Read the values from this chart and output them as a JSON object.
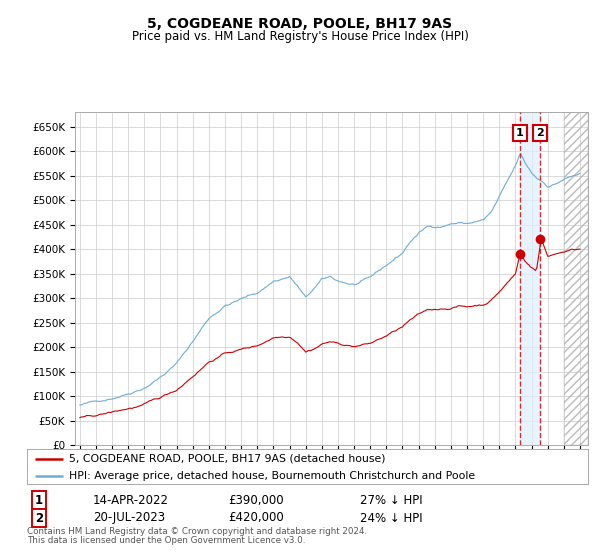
{
  "title": "5, COGDEANE ROAD, POOLE, BH17 9AS",
  "subtitle": "Price paid vs. HM Land Registry's House Price Index (HPI)",
  "ylim": [
    0,
    680000
  ],
  "yticks": [
    0,
    50000,
    100000,
    150000,
    200000,
    250000,
    300000,
    350000,
    400000,
    450000,
    500000,
    550000,
    600000,
    650000
  ],
  "ytick_labels": [
    "£0",
    "£50K",
    "£100K",
    "£150K",
    "£200K",
    "£250K",
    "£300K",
    "£350K",
    "£400K",
    "£450K",
    "£500K",
    "£550K",
    "£600K",
    "£650K"
  ],
  "hpi_color": "#6baed6",
  "price_color": "#cc0000",
  "sale1_x": 2022.28,
  "sale1_y": 390000,
  "sale2_x": 2023.54,
  "sale2_y": 420000,
  "sale1_label": "1",
  "sale2_label": "2",
  "sale1_date": "14-APR-2022",
  "sale1_price": "£390,000",
  "sale1_below": "27% ↓ HPI",
  "sale2_date": "20-JUL-2023",
  "sale2_price": "£420,000",
  "sale2_below": "24% ↓ HPI",
  "legend_line1": "5, COGDEANE ROAD, POOLE, BH17 9AS (detached house)",
  "legend_line2": "HPI: Average price, detached house, Bournemouth Christchurch and Poole",
  "footnote1": "Contains HM Land Registry data © Crown copyright and database right 2024.",
  "footnote2": "This data is licensed under the Open Government Licence v3.0.",
  "xlim_left": 1994.7,
  "xlim_right": 2026.5,
  "x_start": 1995,
  "x_end": 2026,
  "background_color": "#ffffff",
  "grid_color": "#cccccc",
  "shade_color": "#ddeeff"
}
